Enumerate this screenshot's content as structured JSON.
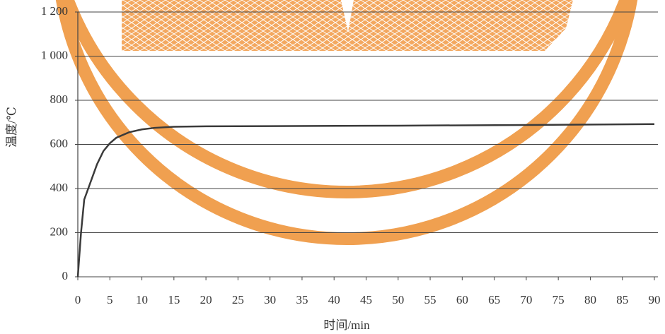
{
  "chart_data": {
    "type": "line",
    "x_label": "时间/min",
    "y_label": "温度/℃",
    "x": [
      0,
      0.5,
      1,
      2,
      3,
      4,
      5,
      6,
      8,
      10,
      12,
      15,
      20,
      30,
      50,
      70,
      90
    ],
    "series": [
      {
        "color": "#3a3a3a",
        "values": [
          0,
          200,
          350,
          430,
          510,
          570,
          605,
          630,
          655,
          668,
          675,
          680,
          682,
          683,
          685,
          688,
          692
        ]
      }
    ],
    "xlim": [
      0,
      90
    ],
    "xticks": [
      0,
      5,
      10,
      15,
      20,
      25,
      30,
      35,
      40,
      45,
      50,
      55,
      60,
      65,
      70,
      75,
      80,
      85,
      90
    ],
    "ylim": [
      0,
      1200
    ],
    "yticks": [
      0,
      200,
      400,
      600,
      800,
      {
        "value": 1000,
        "label": "1 000"
      },
      {
        "value": 1200,
        "label": "1 200"
      }
    ],
    "grid": true
  }
}
